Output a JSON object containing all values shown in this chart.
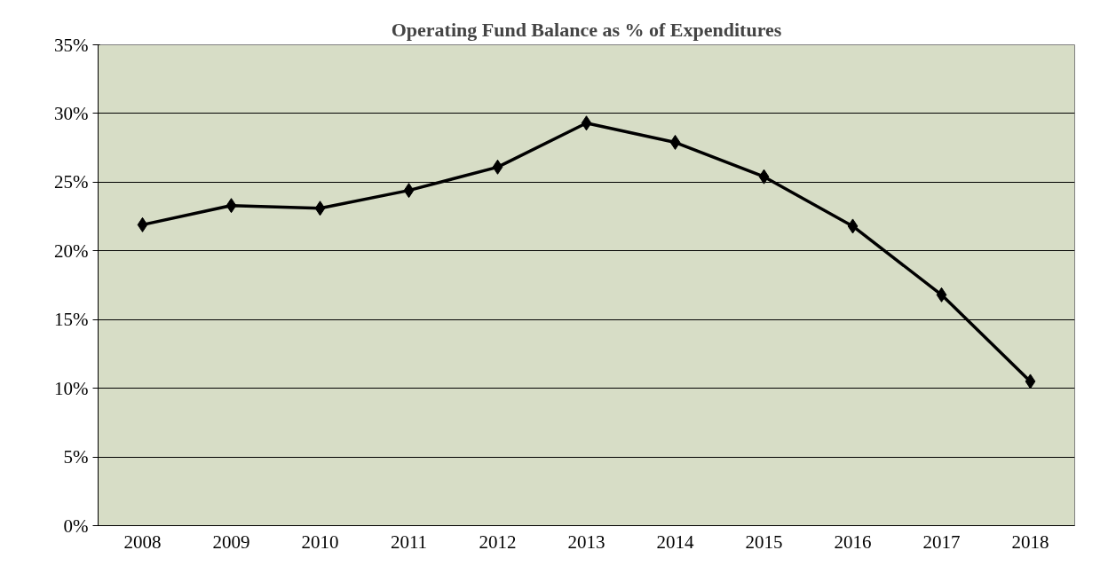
{
  "chart_data": {
    "type": "line",
    "title": "Operating Fund Balance as % of Expenditures",
    "categories": [
      "2008",
      "2009",
      "2010",
      "2011",
      "2012",
      "2013",
      "2014",
      "2015",
      "2016",
      "2017",
      "2018"
    ],
    "series": [
      {
        "color": "#000000",
        "values": [
          21.9,
          23.3,
          23.1,
          24.4,
          26.1,
          29.3,
          27.9,
          25.4,
          21.8,
          16.8,
          10.5
        ]
      }
    ],
    "ylim": [
      0,
      35
    ],
    "yticks": [
      {
        "value": 0,
        "label": "0%"
      },
      {
        "value": 5,
        "label": "5%"
      },
      {
        "value": 10,
        "label": "10%"
      },
      {
        "value": 15,
        "label": "15%"
      },
      {
        "value": 20,
        "label": "20%"
      },
      {
        "value": 25,
        "label": "25%"
      },
      {
        "value": 30,
        "label": "30%"
      },
      {
        "value": 35,
        "label": "35%"
      }
    ],
    "grid": "y",
    "marker": "diamond",
    "line_style": "solid"
  }
}
